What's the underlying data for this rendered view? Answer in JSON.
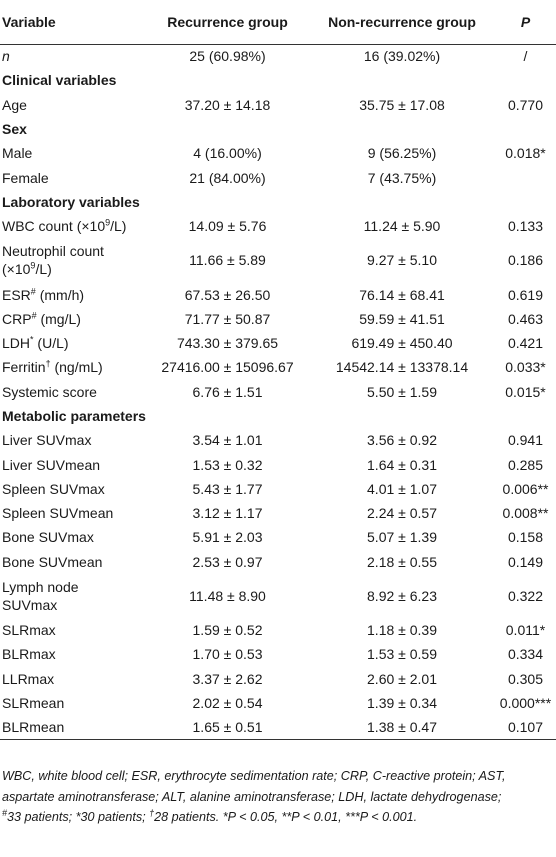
{
  "header": {
    "col_variable": "Variable",
    "col_recurrence": "Recurrence group",
    "col_nonrecurrence": "Non-recurrence group",
    "col_p": "P"
  },
  "rows": [
    {
      "type": "data",
      "label": "n",
      "label_italic": true,
      "rec": "25 (60.98%)",
      "non": "16 (39.02%)",
      "p": "/"
    },
    {
      "type": "section",
      "label": "Clinical variables"
    },
    {
      "type": "data",
      "label": "Age",
      "rec": "37.20 ± 14.18",
      "non": "35.75 ± 17.08",
      "p": "0.770"
    },
    {
      "type": "section",
      "label": "Sex"
    },
    {
      "type": "data",
      "label": "Male",
      "rec": "4 (16.00%)",
      "non": "9 (56.25%)",
      "p": "0.018*"
    },
    {
      "type": "data",
      "label": "Female",
      "rec": "21 (84.00%)",
      "non": "7 (43.75%)",
      "p": ""
    },
    {
      "type": "section",
      "label": "Laboratory variables"
    },
    {
      "type": "data",
      "label": "WBC count (×10",
      "label_sup": "9",
      "label_tail": "/L)",
      "rec": "14.09 ± 5.76",
      "non": "11.24 ± 5.90",
      "p": "0.133"
    },
    {
      "type": "data",
      "tall": true,
      "label": "Neutrophil count",
      "label_line2": "(×10",
      "label_sup": "9",
      "label_tail": "/L)",
      "rec": "11.66 ± 5.89",
      "non": "9.27 ± 5.10",
      "p": "0.186"
    },
    {
      "type": "data",
      "label": "ESR",
      "label_sup": "#",
      "label_tail": " (mm/h)",
      "rec": "67.53 ± 26.50",
      "non": "76.14 ± 68.41",
      "p": "0.619"
    },
    {
      "type": "data",
      "label": "CRP",
      "label_sup": "#",
      "label_tail": " (mg/L)",
      "rec": "71.77 ± 50.87",
      "non": "59.59 ± 41.51",
      "p": "0.463"
    },
    {
      "type": "data",
      "label": "LDH",
      "label_sup": "*",
      "label_tail": " (U/L)",
      "rec": "743.30 ± 379.65",
      "non": "619.49 ± 450.40",
      "p": "0.421"
    },
    {
      "type": "data",
      "label": "Ferritin",
      "label_sup": "†",
      "label_tail": " (ng/mL)",
      "rec": "27416.00 ± 15096.67",
      "non": "14542.14 ± 13378.14",
      "p": "0.033*"
    },
    {
      "type": "data",
      "label": "Systemic score",
      "rec": "6.76 ± 1.51",
      "non": "5.50 ± 1.59",
      "p": "0.015*"
    },
    {
      "type": "section",
      "label": "Metabolic parameters"
    },
    {
      "type": "data",
      "label": "Liver SUVmax",
      "rec": "3.54 ± 1.01",
      "non": "3.56 ± 0.92",
      "p": "0.941"
    },
    {
      "type": "data",
      "label": "Liver SUVmean",
      "rec": "1.53 ± 0.32",
      "non": "1.64 ± 0.31",
      "p": "0.285"
    },
    {
      "type": "data",
      "label": "Spleen SUVmax",
      "rec": "5.43 ± 1.77",
      "non": "4.01 ± 1.07",
      "p": "0.006**"
    },
    {
      "type": "data",
      "label": "Spleen SUVmean",
      "rec": "3.12 ± 1.17",
      "non": "2.24 ± 0.57",
      "p": "0.008**"
    },
    {
      "type": "data",
      "label": "Bone SUVmax",
      "rec": "5.91 ± 2.03",
      "non": "5.07 ± 1.39",
      "p": "0.158"
    },
    {
      "type": "data",
      "label": "Bone SUVmean",
      "rec": "2.53 ± 0.97",
      "non": "2.18 ± 0.55",
      "p": "0.149"
    },
    {
      "type": "data",
      "tall": true,
      "label": "Lymph node",
      "label_line2": "SUVmax",
      "rec": "11.48 ± 8.90",
      "non": "8.92 ± 6.23",
      "p": "0.322"
    },
    {
      "type": "data",
      "label": "SLRmax",
      "rec": "1.59 ± 0.52",
      "non": "1.18 ± 0.39",
      "p": "0.011*"
    },
    {
      "type": "data",
      "label": "BLRmax",
      "rec": "1.70 ± 0.53",
      "non": "1.53 ± 0.59",
      "p": "0.334"
    },
    {
      "type": "data",
      "label": "LLRmax",
      "rec": "3.37 ± 2.62",
      "non": "2.60 ± 2.01",
      "p": "0.305"
    },
    {
      "type": "data",
      "label": "SLRmean",
      "rec": "2.02 ± 0.54",
      "non": "1.39 ± 0.34",
      "p": "0.000***"
    },
    {
      "type": "data",
      "label": "BLRmean",
      "rec": "1.65 ± 0.51",
      "non": "1.38 ± 0.47",
      "p": "0.107"
    }
  ],
  "footnote": {
    "line1": "WBC, white blood cell; ESR, erythrocyte sedimentation rate; CRP, C-reactive protein; AST,",
    "line2": "aspartate aminotransferase; ALT, alanine aminotransferase; LDH, lactate dehydrogenase;",
    "l3_sup1": "#",
    "l3_a": "33 patients; *30 patients; ",
    "l3_sup2": "†",
    "l3_b": "28 patients. *P < 0.05, **P < 0.01, ***P < 0.001."
  }
}
